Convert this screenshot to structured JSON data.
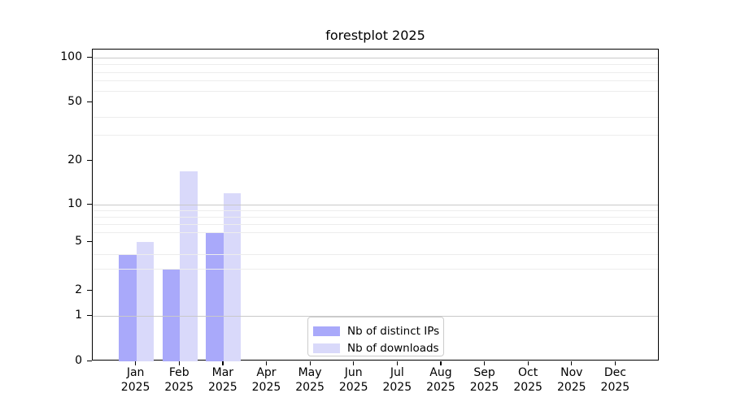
{
  "title": "forestplot 2025",
  "chart_data": {
    "type": "bar",
    "title": "forestplot 2025",
    "categories": [
      "Jan",
      "Feb",
      "Mar",
      "Apr",
      "May",
      "Jun",
      "Jul",
      "Aug",
      "Sep",
      "Oct",
      "Nov",
      "Dec"
    ],
    "year_label": "2025",
    "series": [
      {
        "name": "Nb of distinct IPs",
        "color": "#a9a9fa",
        "values": [
          4,
          3,
          6,
          0,
          0,
          0,
          0,
          0,
          0,
          0,
          0,
          0
        ]
      },
      {
        "name": "Nb of downloads",
        "color": "#d9d9fa",
        "values": [
          5,
          17,
          12,
          0,
          0,
          0,
          0,
          0,
          0,
          0,
          0,
          0
        ]
      }
    ],
    "xlabel": "",
    "ylabel": "",
    "yscale": "log-like",
    "ytick_labels": [
      "0",
      "1",
      "2",
      "5",
      "10",
      "20",
      "50",
      "100"
    ],
    "ytick_values": [
      0,
      1,
      2,
      5,
      10,
      20,
      50,
      100
    ],
    "major_grid_values": [
      1,
      10,
      100
    ],
    "minor_grid_values": [
      3,
      4,
      6,
      7,
      8,
      9,
      30,
      40,
      60,
      70,
      80,
      90
    ],
    "ylim": [
      0,
      110
    ],
    "grid": "on",
    "legend": {
      "position": "lower center",
      "entries": [
        "Nb of distinct IPs",
        "Nb of downloads"
      ]
    },
    "colors": {
      "bar_dark": "#a9a9fa",
      "bar_light": "#d9d9fa",
      "grid_major": "#c9c9c9",
      "grid_minor": "#ededed",
      "spine": "#000000",
      "text": "#000000"
    }
  }
}
